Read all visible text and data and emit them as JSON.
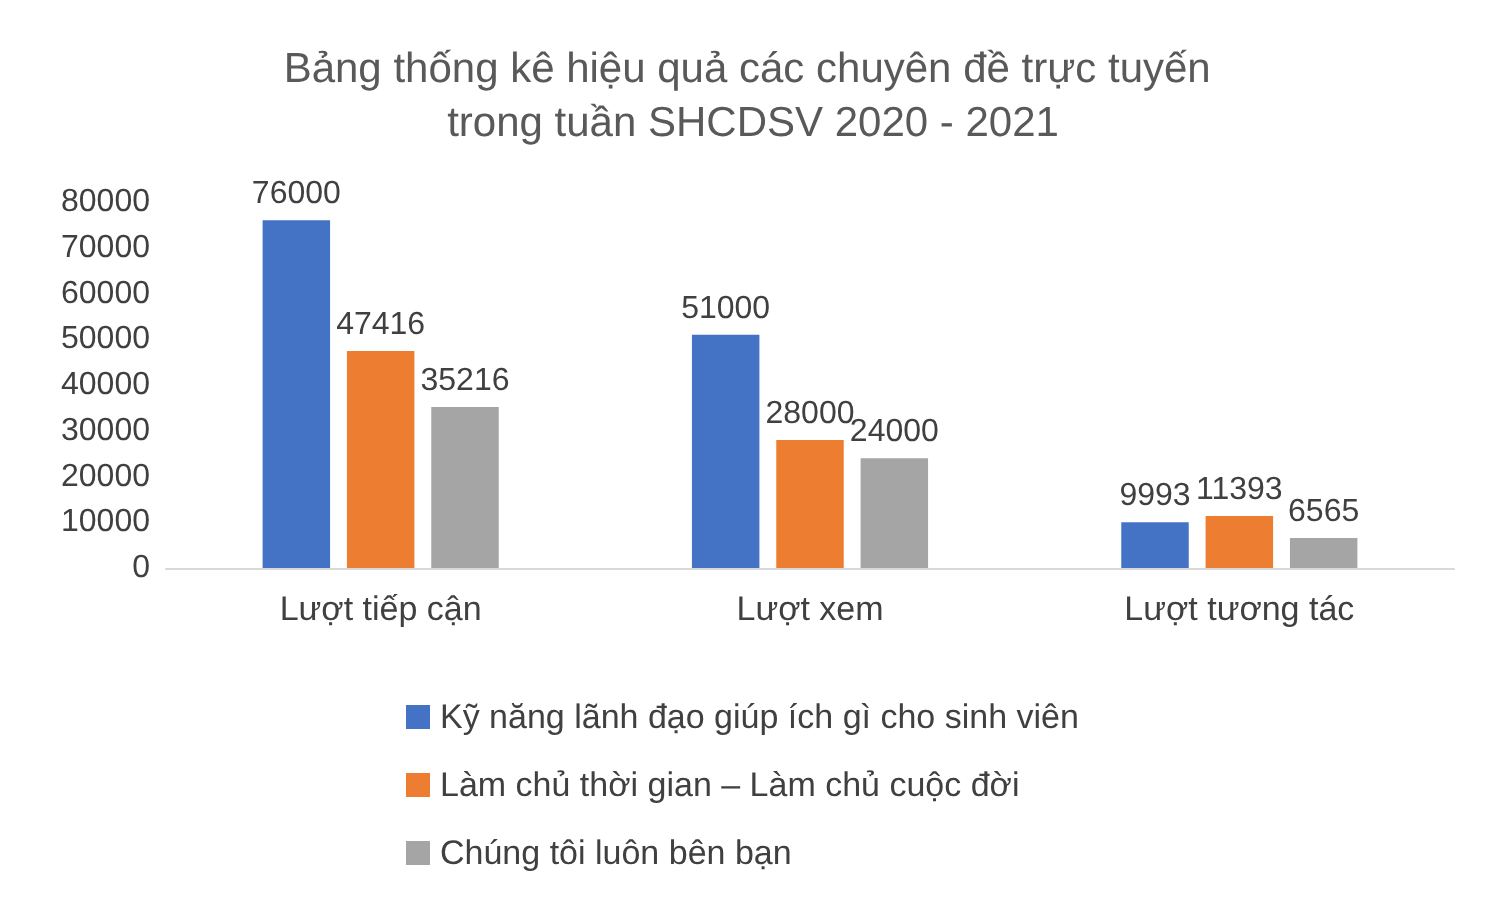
{
  "chart_data": {
    "type": "bar",
    "title": "Bảng thống kê hiệu quả các chuyên đề trực tuyến trong tuần SHCDSV 2020 - 2021",
    "categories": [
      "Lượt tiếp cận",
      "Lượt xem",
      "Lượt tương tác"
    ],
    "series": [
      {
        "name": "Kỹ năng lãnh đạo giúp ích gì cho sinh viên",
        "color": "#4472c4",
        "values": [
          76000,
          51000,
          9993
        ]
      },
      {
        "name": "Làm chủ thời gian – Làm chủ cuộc đời",
        "color": "#ed7d31",
        "values": [
          47416,
          28000,
          11393
        ]
      },
      {
        "name": "Chúng tôi luôn bên bạn",
        "color": "#a5a5a5",
        "values": [
          35216,
          24000,
          6565
        ]
      }
    ],
    "ylim": [
      0,
      80000
    ],
    "yticks": [
      0,
      10000,
      20000,
      30000,
      40000,
      50000,
      60000,
      70000,
      80000
    ],
    "grid": false,
    "legend": "bottom",
    "data_labels": true
  }
}
